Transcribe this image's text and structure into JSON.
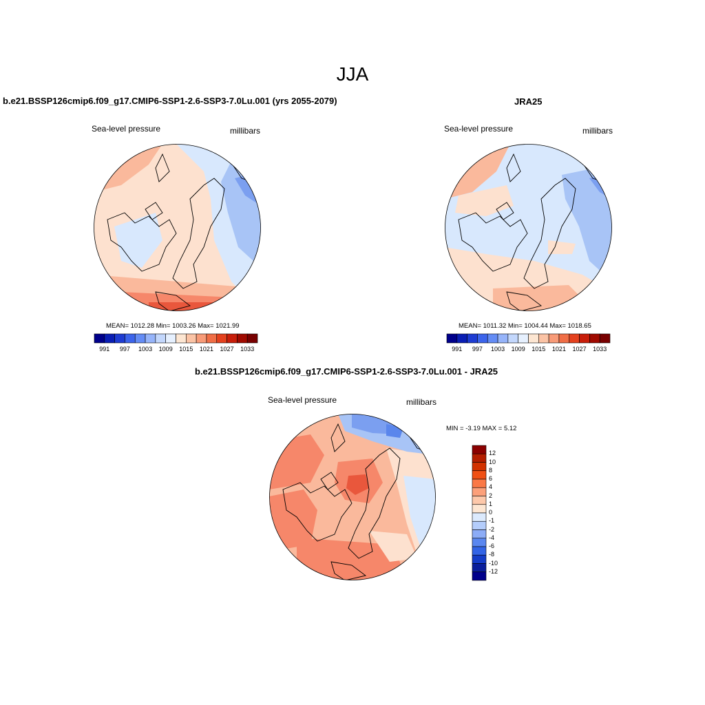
{
  "main_title": "JJA",
  "panels": [
    {
      "title": "b.e21.BSSP126cmip6.f09_g17.CMIP6-SSP1-2.6-SSP3-7.0Lu.001 (yrs 2055-2079)",
      "variable": "Sea-level pressure",
      "units": "millibars",
      "stats": "MEAN= 1012.28  Min= 1003.26  Max= 1021.99"
    },
    {
      "title": "JRA25",
      "variable": "Sea-level pressure",
      "units": "millibars",
      "stats": "MEAN= 1011.32  Min= 1004.44  Max= 1018.65"
    },
    {
      "title": "b.e21.BSSP126cmip6.f09_g17.CMIP6-SSP1-2.6-SSP3-7.0Lu.001 - JRA25",
      "variable": "Sea-level pressure",
      "units": "millibars",
      "stats": "MIN =  -3.19 MAX =   5.12"
    }
  ],
  "abs_colorbar": {
    "labels": [
      "991",
      "997",
      "1003",
      "1009",
      "1015",
      "1021",
      "1027",
      "1033"
    ],
    "colors": [
      "#00008b",
      "#0a1eb4",
      "#1e3cd2",
      "#3c64eb",
      "#648cf5",
      "#96b4fa",
      "#c3d7fc",
      "#e6f0fe",
      "#fde6d2",
      "#fbc3a5",
      "#f89b78",
      "#f06e46",
      "#e4411e",
      "#c81e0a",
      "#a00a00",
      "#780000"
    ]
  },
  "diff_colorbar": {
    "labels": [
      "12",
      "10",
      "8",
      "6",
      "4",
      "2",
      "1",
      "0",
      "-1",
      "-2",
      "-4",
      "-6",
      "-8",
      "-10",
      "-12"
    ],
    "colors": [
      "#8b0000",
      "#b41e00",
      "#d23200",
      "#f05014",
      "#fa7846",
      "#fca07a",
      "#fdc8aa",
      "#fde6d2",
      "#dceafd",
      "#b4cdfb",
      "#8cacf7",
      "#5a87f0",
      "#3264e6",
      "#143cc8",
      "#0a1e9b",
      "#00008b"
    ]
  },
  "map_colors": {
    "deep_red": "#e9573c",
    "red": "#f6876a",
    "salmon": "#fab99c",
    "light_salmon": "#fde1cf",
    "pale_blue": "#d8e8fd",
    "light_blue": "#a8c4f6",
    "blue": "#7b9ff0",
    "mid_blue": "#5a86ec"
  }
}
